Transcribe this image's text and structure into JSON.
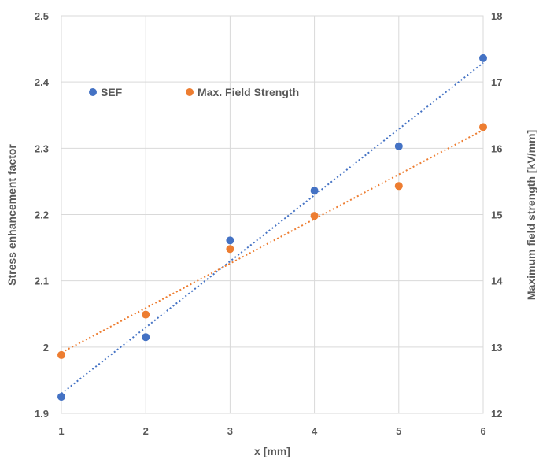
{
  "chart_data": {
    "type": "scatter",
    "xlabel": "x [mm]",
    "ylabel": "Stress enhancement factor",
    "y2label": "Maximum field strength [kV/mm]",
    "xlim": [
      1,
      6
    ],
    "ylim": [
      1.9,
      2.5
    ],
    "y2lim": [
      12,
      18
    ],
    "x_ticks": [
      "1",
      "2",
      "3",
      "4",
      "5",
      "6"
    ],
    "y_ticks": [
      "1.9",
      "2",
      "2.1",
      "2.2",
      "2.3",
      "2.4",
      "2.5"
    ],
    "y2_ticks": [
      "12",
      "13",
      "14",
      "15",
      "16",
      "17",
      "18"
    ],
    "grid": true,
    "legend_position": "top-left",
    "series": [
      {
        "name": "SEF",
        "axis": "left",
        "color": "#4472C4",
        "x": [
          1,
          2,
          3,
          4,
          5,
          6
        ],
        "y": [
          1.925,
          2.015,
          2.161,
          2.236,
          2.303,
          2.436
        ],
        "trendline": "linear"
      },
      {
        "name": "Max. Field Strength",
        "axis": "right",
        "color": "#ED7D31",
        "x": [
          1,
          2,
          3,
          4,
          5,
          6
        ],
        "y": [
          12.88,
          13.49,
          14.48,
          14.98,
          15.43,
          16.32
        ],
        "trendline": "linear"
      }
    ]
  }
}
